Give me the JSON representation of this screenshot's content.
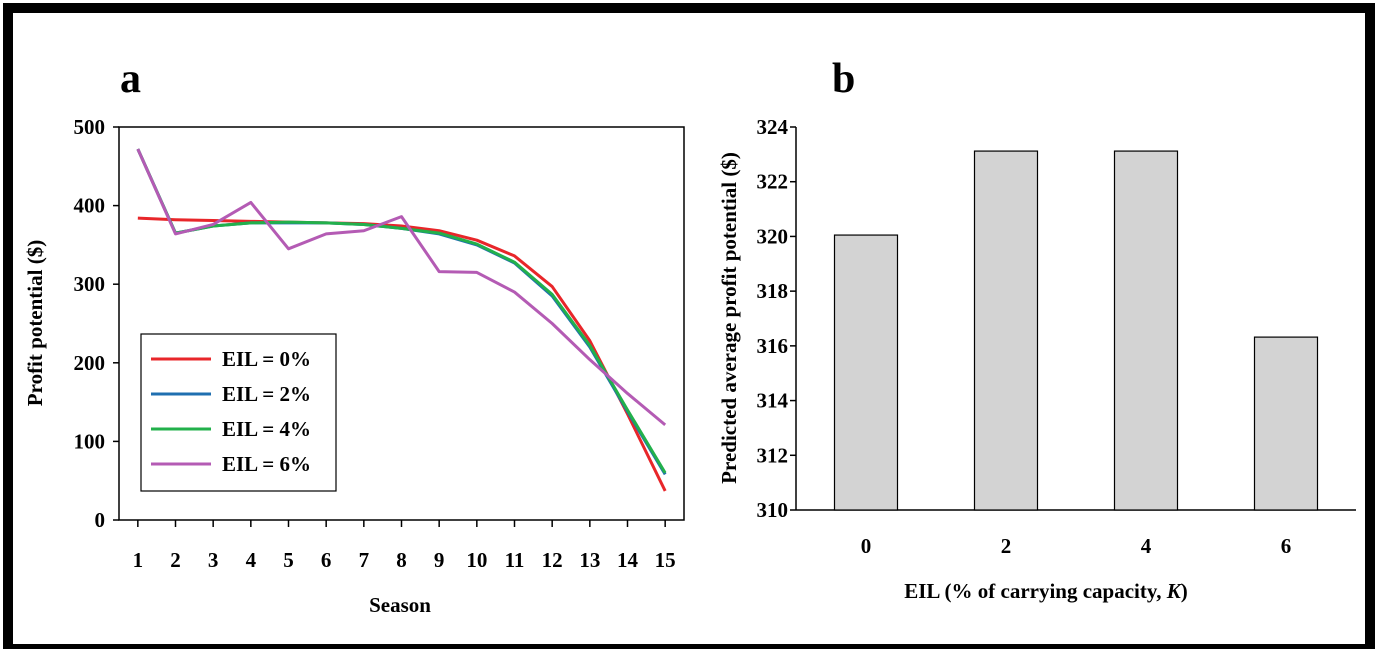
{
  "panel_a_label": "a",
  "panel_b_label": "b",
  "chart_data": [
    {
      "type": "line",
      "title": "",
      "xlabel": "Season",
      "ylabel": "Profit potential ($)",
      "x": [
        1,
        2,
        3,
        4,
        5,
        6,
        7,
        8,
        9,
        10,
        11,
        12,
        13,
        14,
        15
      ],
      "ylim": [
        0,
        500
      ],
      "yticks": [
        0,
        100,
        200,
        300,
        400,
        500
      ],
      "legend_position": "lower-left",
      "grid": false,
      "series": [
        {
          "name": "EIL = 0%",
          "color": "#e8262a",
          "values": [
            384,
            382,
            381,
            380,
            379,
            378,
            377,
            374,
            368,
            356,
            336,
            297,
            228,
            135,
            37
          ]
        },
        {
          "name": "EIL = 2%",
          "color": "#1f6fb0",
          "values": [
            472,
            365,
            374,
            378,
            378,
            378,
            376,
            371,
            364,
            350,
            327,
            285,
            220,
            138,
            58
          ]
        },
        {
          "name": "EIL = 4%",
          "color": "#22b04b",
          "values": [
            472,
            365,
            374,
            378,
            379,
            378,
            376,
            371,
            365,
            351,
            328,
            287,
            222,
            140,
            60
          ]
        },
        {
          "name": "EIL = 6%",
          "color": "#b45bb4",
          "values": [
            472,
            364,
            376,
            404,
            345,
            364,
            368,
            386,
            316,
            315,
            290,
            250,
            204,
            161,
            121
          ]
        }
      ]
    },
    {
      "type": "bar",
      "title": "",
      "xlabel_prefix": "EIL (% of carrying capacity, ",
      "xlabel_italic": "K",
      "xlabel_suffix": ")",
      "ylabel": "Predicted average profit potential ($)",
      "categories": [
        "0",
        "2",
        "4",
        "6"
      ],
      "values": [
        320.05,
        323.12,
        323.12,
        316.32
      ],
      "ylim": [
        310,
        324
      ],
      "yticks": [
        310,
        312,
        314,
        316,
        318,
        320,
        322,
        324
      ],
      "bar_color": "#d3d3d3",
      "grid": false
    }
  ]
}
